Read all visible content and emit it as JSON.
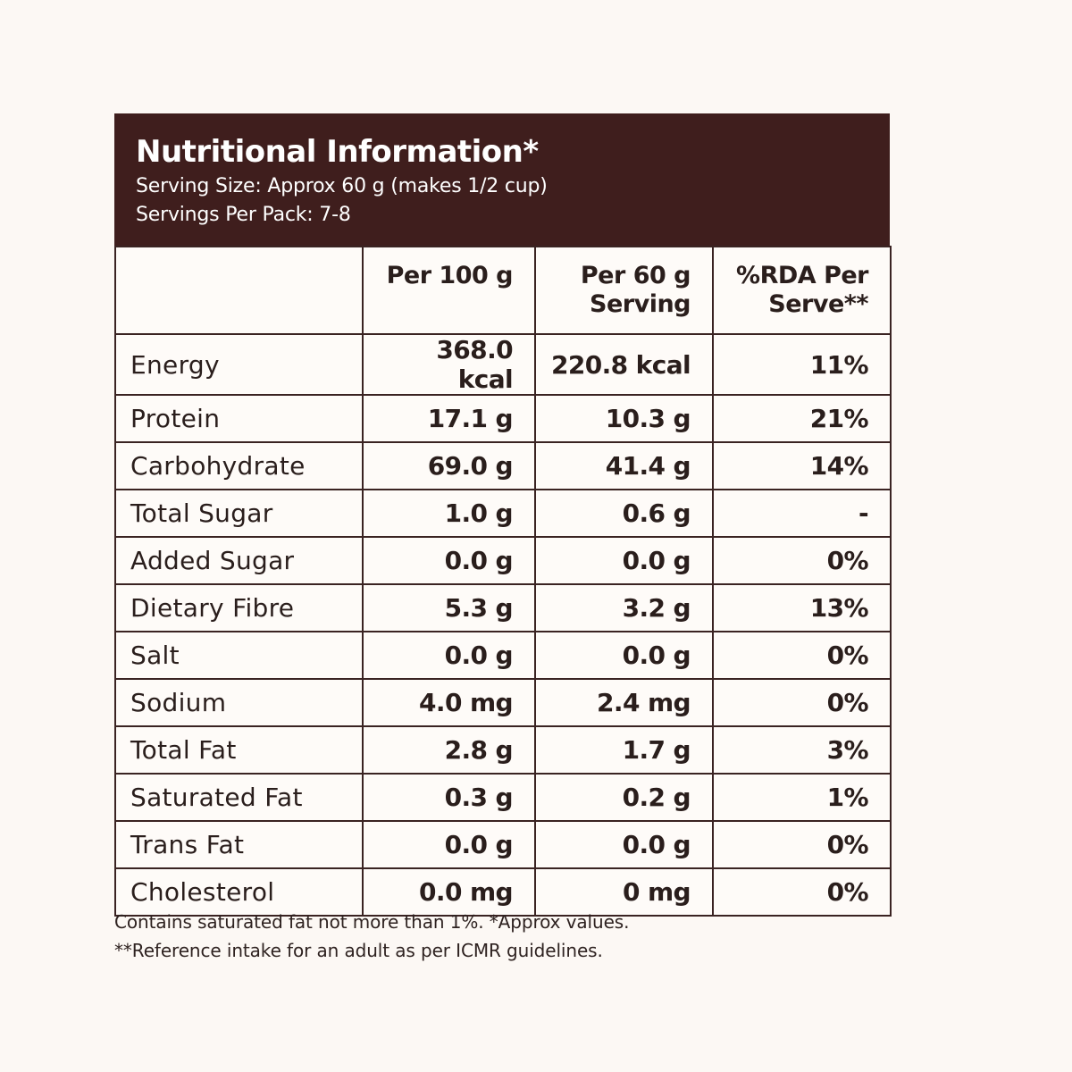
{
  "header": {
    "title": "Nutritional Information*",
    "serving_size": "Serving Size: Approx 60 g (makes 1/2 cup)",
    "servings_per_pack": "Servings Per Pack: 7-8"
  },
  "columns": {
    "nutrient": "",
    "per_100g": "Per 100 g",
    "per_serving": "Per 60 g Serving",
    "rda": "%RDA Per Serve**"
  },
  "rows": [
    {
      "nutrient": "Energy",
      "per_100g": "368.0 kcal",
      "per_serving": "220.8 kcal",
      "rda": "11%"
    },
    {
      "nutrient": "Protein",
      "per_100g": "17.1 g",
      "per_serving": "10.3 g",
      "rda": "21%"
    },
    {
      "nutrient": "Carbohydrate",
      "per_100g": "69.0 g",
      "per_serving": "41.4 g",
      "rda": "14%"
    },
    {
      "nutrient": "Total Sugar",
      "per_100g": "1.0 g",
      "per_serving": "0.6 g",
      "rda": "-"
    },
    {
      "nutrient": "Added Sugar",
      "per_100g": "0.0 g",
      "per_serving": "0.0 g",
      "rda": "0%"
    },
    {
      "nutrient": "Dietary Fibre",
      "per_100g": "5.3 g",
      "per_serving": "3.2 g",
      "rda": "13%"
    },
    {
      "nutrient": "Salt",
      "per_100g": "0.0 g",
      "per_serving": "0.0 g",
      "rda": "0%"
    },
    {
      "nutrient": "Sodium",
      "per_100g": "4.0 mg",
      "per_serving": "2.4 mg",
      "rda": "0%"
    },
    {
      "nutrient": "Total Fat",
      "per_100g": "2.8 g",
      "per_serving": "1.7 g",
      "rda": "3%"
    },
    {
      "nutrient": "Saturated Fat",
      "per_100g": "0.3 g",
      "per_serving": "0.2 g",
      "rda": "1%"
    },
    {
      "nutrient": "Trans Fat",
      "per_100g": "0.0 g",
      "per_serving": "0.0 g",
      "rda": "0%"
    },
    {
      "nutrient": "Cholesterol",
      "per_100g": "0.0 mg",
      "per_serving": "0 mg",
      "rda": "0%"
    }
  ],
  "notes": {
    "line1": "Contains saturated fat not more than 1%. *Approx values.",
    "line2": "**Reference intake for an adult as per ICMR guidelines."
  },
  "colors": {
    "header_bg": "#3f1e1d",
    "page_bg": "#fcf8f4",
    "border": "#3a2322"
  }
}
